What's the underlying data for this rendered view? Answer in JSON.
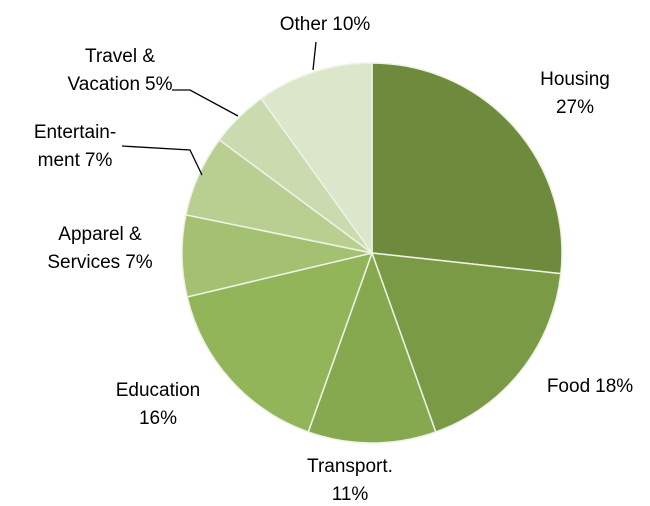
{
  "chart_data": {
    "type": "pie",
    "categories": [
      [
        "Housing"
      ],
      [
        "Food"
      ],
      [
        "Transport."
      ],
      [
        "Education"
      ],
      [
        "Apparel &",
        "Services"
      ],
      [
        "Entertain-",
        "ment"
      ],
      [
        "Travel &",
        "Vacation"
      ],
      [
        "Other"
      ]
    ],
    "values": [
      27,
      18,
      11,
      16,
      7,
      7,
      5,
      10
    ],
    "value_labels": [
      "27%",
      "18%",
      "11%",
      "16%",
      "7%",
      "7%",
      "5%",
      "10%"
    ],
    "colors": [
      "#6e8b3d",
      "#7a9a45",
      "#86a84f",
      "#93b55a",
      "#a3c170",
      "#b9cf92",
      "#cbdbb0",
      "#dce6ca"
    ]
  }
}
